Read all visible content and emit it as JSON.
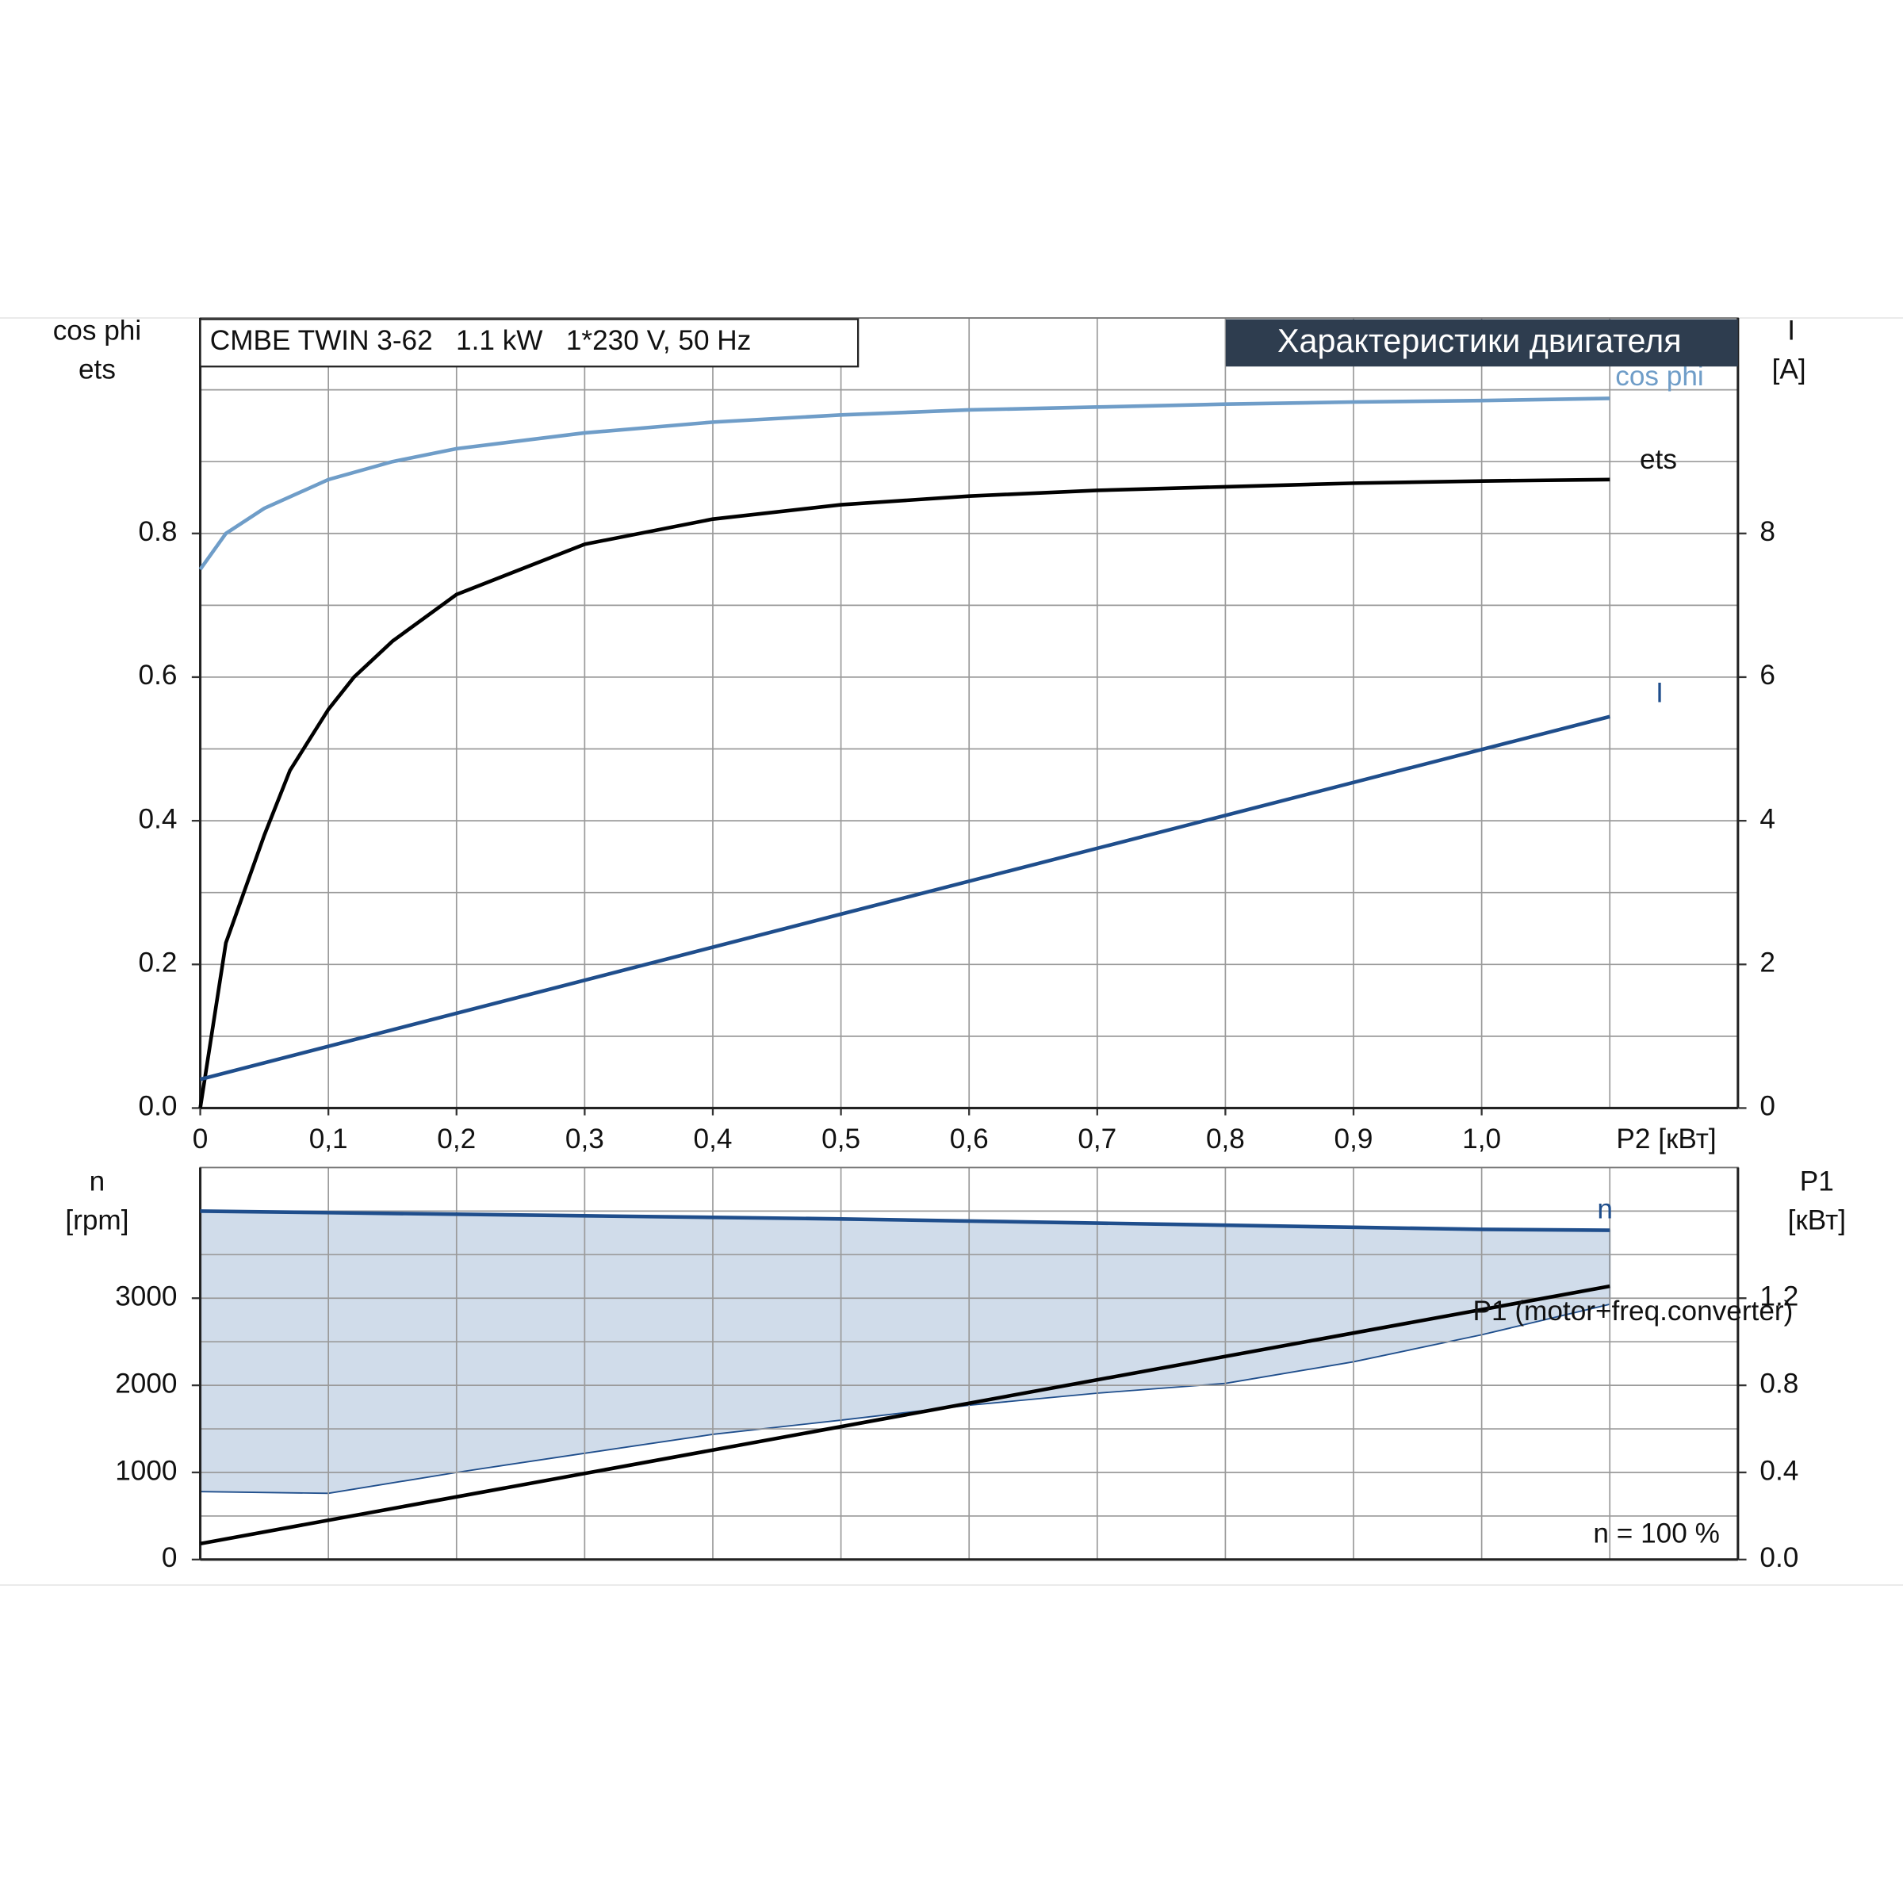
{
  "chart_data": [
    {
      "type": "line",
      "title": "CMBE TWIN 3-62   1.1 kW   1*230 V, 50 Hz",
      "subtitle": "Характеристики двигателя",
      "ylabel": [
        "cos phi",
        "ets"
      ],
      "y2label": [
        "I",
        "[A]"
      ],
      "xlabel": "P2 [кВт]",
      "xlim": [
        0,
        1.2
      ],
      "xticks": [
        0,
        {
          "value": 0.1,
          "label": "0,1"
        },
        {
          "value": 0.2,
          "label": "0,2"
        },
        {
          "value": 0.3,
          "label": "0,3"
        },
        {
          "value": 0.4,
          "label": "0,4"
        },
        {
          "value": 0.5,
          "label": "0,5"
        },
        {
          "value": 0.6,
          "label": "0,6"
        },
        {
          "value": 0.7,
          "label": "0,7"
        },
        {
          "value": 0.8,
          "label": "0,8"
        },
        {
          "value": 0.9,
          "label": "0,9"
        },
        {
          "value": 1.0,
          "label": "1,0"
        }
      ],
      "xgrid": [
        1.1
      ],
      "ylim": [
        0,
        1.1
      ],
      "yticks": [
        {
          "value": 0,
          "label": "0.0"
        },
        0.2,
        0.4,
        0.6,
        0.8
      ],
      "ygrid": [
        0.1,
        0.3,
        0.5,
        0.7,
        0.9,
        1.0
      ],
      "y2lim": [
        0,
        11
      ],
      "y2ticks": [
        0,
        2,
        4,
        6,
        8
      ],
      "grid": true,
      "series": [
        {
          "name": "cos phi",
          "color": "#6f9dc8",
          "x": [
            0,
            0.02,
            0.05,
            0.1,
            0.15,
            0.2,
            0.3,
            0.4,
            0.5,
            0.6,
            0.7,
            0.8,
            0.9,
            1.0,
            1.1
          ],
          "values": [
            0.75,
            0.8,
            0.835,
            0.875,
            0.9,
            0.918,
            0.94,
            0.955,
            0.965,
            0.972,
            0.976,
            0.98,
            0.983,
            0.985,
            0.988
          ]
        },
        {
          "name": "ets",
          "color": "#000000",
          "x": [
            0,
            0.02,
            0.05,
            0.07,
            0.1,
            0.12,
            0.15,
            0.2,
            0.3,
            0.4,
            0.5,
            0.6,
            0.7,
            0.8,
            0.9,
            1.0,
            1.1
          ],
          "values": [
            0,
            0.23,
            0.38,
            0.47,
            0.555,
            0.6,
            0.65,
            0.715,
            0.785,
            0.82,
            0.84,
            0.852,
            0.86,
            0.865,
            0.87,
            0.873,
            0.875
          ]
        },
        {
          "name": "I",
          "color": "#1f4e8c",
          "axis": "y2",
          "x": [
            0,
            0.5,
            1.1
          ],
          "values": [
            0.4,
            2.7,
            5.45
          ]
        }
      ]
    },
    {
      "type": "line",
      "ylabel": [
        "n",
        "[rpm]"
      ],
      "y2label": [
        "P1",
        "[кВт]"
      ],
      "annotation": "n = 100 %",
      "xlim": [
        0,
        1.2
      ],
      "xgrid": [
        0.1,
        0.2,
        0.3,
        0.4,
        0.5,
        0.6,
        0.7,
        0.8,
        0.9,
        1.0,
        1.1
      ],
      "ylim": [
        0,
        4500
      ],
      "yticks": [
        0,
        1000,
        2000,
        3000
      ],
      "ygrid": [
        500,
        1500,
        2500,
        3500,
        4000
      ],
      "y2lim": [
        0,
        1.8
      ],
      "y2ticks": [
        {
          "value": 0,
          "label": "0.0"
        },
        0.4,
        0.8,
        1.2
      ],
      "grid": true,
      "series": [
        {
          "name": "n",
          "color": "#1f4e8c",
          "fill_color": "#d0dcea",
          "x": [
            0,
            0.1,
            0.2,
            0.3,
            0.4,
            0.5,
            0.6,
            0.7,
            0.8,
            0.9,
            1.0,
            1.1
          ],
          "values": [
            4000,
            3982,
            3964,
            3946,
            3928,
            3910,
            3886,
            3862,
            3838,
            3814,
            3790,
            3780
          ],
          "fill_lower": [
            780,
            760,
            1000,
            1220,
            1437,
            1600,
            1771,
            1910,
            2022,
            2270,
            2580,
            2930
          ]
        },
        {
          "name": "P1 (motor+freq.converter)",
          "color": "#000000",
          "axis": "y2",
          "x": [
            0,
            1.1
          ],
          "values": [
            0.073,
            1.255
          ]
        }
      ]
    }
  ]
}
